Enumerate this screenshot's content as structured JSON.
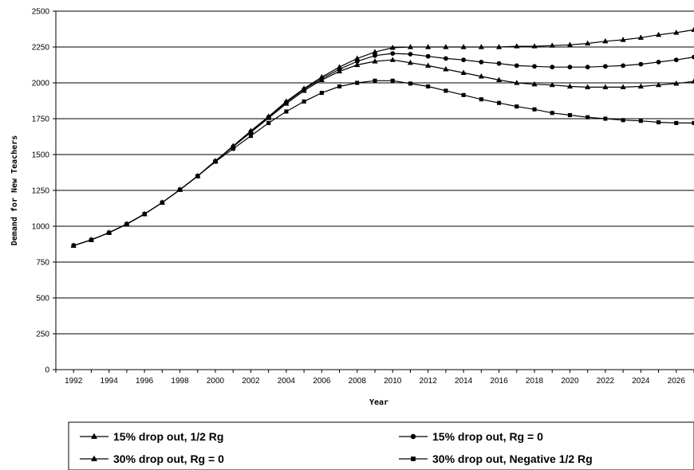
{
  "chart_data": {
    "type": "line",
    "title": "",
    "xlabel": "Year",
    "ylabel": "Demand for New Teachers",
    "xlim": [
      1991,
      2027
    ],
    "ylim": [
      0,
      2500
    ],
    "xticks": [
      "1992",
      "1994",
      "1996",
      "1998",
      "2000",
      "2002",
      "2004",
      "2006",
      "2008",
      "2010",
      "2012",
      "2014",
      "2016",
      "2018",
      "2020",
      "2022",
      "2024",
      "2026"
    ],
    "yticks": [
      "0",
      "250",
      "500",
      "750",
      "1000",
      "1250",
      "1500",
      "1750",
      "2000",
      "2250",
      "2500"
    ],
    "grid": "horizontal",
    "legend": "bottom",
    "x": [
      1992,
      1993,
      1994,
      1995,
      1996,
      1997,
      1998,
      1999,
      2000,
      2001,
      2002,
      2003,
      2004,
      2005,
      2006,
      2007,
      2008,
      2009,
      2010,
      2011,
      2012,
      2013,
      2014,
      2015,
      2016,
      2017,
      2018,
      2019,
      2020,
      2021,
      2022,
      2023,
      2024,
      2025,
      2026,
      2027
    ],
    "series": [
      {
        "name": "15% drop out, 1/2 Rg",
        "marker": "triangle",
        "values": [
          865,
          905,
          955,
          1015,
          1085,
          1165,
          1255,
          1350,
          1455,
          1560,
          1665,
          1765,
          1870,
          1960,
          2040,
          2110,
          2170,
          2215,
          2245,
          2250,
          2250,
          2250,
          2250,
          2250,
          2250,
          2255,
          2255,
          2260,
          2265,
          2275,
          2290,
          2300,
          2315,
          2335,
          2350,
          2370
        ]
      },
      {
        "name": "15% drop out, Rg = 0",
        "marker": "circle",
        "values": [
          865,
          905,
          955,
          1015,
          1085,
          1165,
          1255,
          1350,
          1455,
          1555,
          1660,
          1760,
          1865,
          1955,
          2030,
          2095,
          2150,
          2190,
          2205,
          2200,
          2185,
          2170,
          2160,
          2145,
          2135,
          2120,
          2115,
          2110,
          2110,
          2110,
          2115,
          2120,
          2130,
          2145,
          2160,
          2180
        ]
      },
      {
        "name": "30% drop out, Rg = 0",
        "marker": "triangle",
        "values": [
          865,
          905,
          955,
          1015,
          1085,
          1165,
          1255,
          1350,
          1455,
          1555,
          1655,
          1755,
          1855,
          1945,
          2020,
          2080,
          2125,
          2150,
          2160,
          2140,
          2120,
          2095,
          2070,
          2045,
          2020,
          2000,
          1990,
          1985,
          1975,
          1970,
          1970,
          1970,
          1975,
          1985,
          1995,
          2010
        ]
      },
      {
        "name": "30% drop out, Negative 1/2 Rg",
        "marker": "square",
        "values": [
          865,
          905,
          955,
          1015,
          1085,
          1165,
          1255,
          1350,
          1450,
          1540,
          1630,
          1720,
          1800,
          1870,
          1930,
          1975,
          2000,
          2015,
          2015,
          1995,
          1975,
          1945,
          1915,
          1885,
          1860,
          1835,
          1815,
          1790,
          1775,
          1760,
          1750,
          1740,
          1735,
          1725,
          1720,
          1720
        ]
      }
    ]
  }
}
